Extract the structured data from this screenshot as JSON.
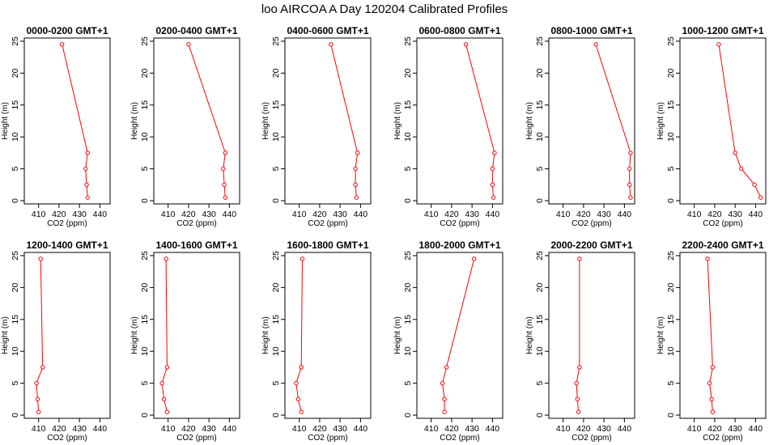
{
  "title": "loo AIRCOA A  Day 120204  Calibrated Profiles",
  "colors": {
    "line": "#ff0000",
    "points": "#ff0000",
    "frame": "#000000"
  },
  "chart_data": [
    {
      "type": "line",
      "title": "0000-0200 GMT+1",
      "xlabel": "CO2 (ppm)",
      "ylabel": "Height (m)",
      "xlim": [
        403,
        445
      ],
      "ylim": [
        -0.5,
        25.5
      ],
      "xticks": [
        410,
        420,
        430,
        440
      ],
      "yticks": [
        0,
        5,
        10,
        15,
        20,
        25
      ],
      "x": [
        434,
        433.5,
        433,
        434,
        421.5
      ],
      "y": [
        0.5,
        2.5,
        5,
        7.5,
        24.5
      ]
    },
    {
      "type": "line",
      "title": "0200-0400 GMT+1",
      "xlabel": "CO2 (ppm)",
      "ylabel": "Height (m)",
      "xlim": [
        403,
        445
      ],
      "ylim": [
        -0.5,
        25.5
      ],
      "xticks": [
        410,
        420,
        430,
        440
      ],
      "yticks": [
        0,
        5,
        10,
        15,
        20,
        25
      ],
      "x": [
        438,
        437.5,
        437,
        438,
        420
      ],
      "y": [
        0.5,
        2.5,
        5,
        7.5,
        24.5
      ]
    },
    {
      "type": "line",
      "title": "0400-0600 GMT+1",
      "xlabel": "CO2 (ppm)",
      "ylabel": "Height (m)",
      "xlim": [
        403,
        445
      ],
      "ylim": [
        -0.5,
        25.5
      ],
      "xticks": [
        410,
        420,
        430,
        440
      ],
      "yticks": [
        0,
        5,
        10,
        15,
        20,
        25
      ],
      "x": [
        438,
        437.5,
        437.5,
        438.5,
        425.5
      ],
      "y": [
        0.5,
        2.5,
        5,
        7.5,
        24.5
      ]
    },
    {
      "type": "line",
      "title": "0600-0800 GMT+1",
      "xlabel": "CO2 (ppm)",
      "ylabel": "Height (m)",
      "xlim": [
        403,
        445
      ],
      "ylim": [
        -0.5,
        25.5
      ],
      "xticks": [
        410,
        420,
        430,
        440
      ],
      "yticks": [
        0,
        5,
        10,
        15,
        20,
        25
      ],
      "x": [
        440.5,
        440,
        440,
        441,
        427
      ],
      "y": [
        0.5,
        2.5,
        5,
        7.5,
        24.5
      ]
    },
    {
      "type": "line",
      "title": "0800-1000 GMT+1",
      "xlabel": "CO2 (ppm)",
      "ylabel": "Height (m)",
      "xlim": [
        403,
        445
      ],
      "ylim": [
        -0.5,
        25.5
      ],
      "xticks": [
        410,
        420,
        430,
        440
      ],
      "yticks": [
        0,
        5,
        10,
        15,
        20,
        25
      ],
      "x": [
        443,
        442.5,
        442.5,
        443,
        426
      ],
      "y": [
        0.5,
        2.5,
        5,
        7.5,
        24.5
      ]
    },
    {
      "type": "line",
      "title": "1000-1200 GMT+1",
      "xlabel": "CO2 (ppm)",
      "ylabel": "Height (m)",
      "xlim": [
        403,
        445
      ],
      "ylim": [
        -0.5,
        25.5
      ],
      "xticks": [
        410,
        420,
        430,
        440
      ],
      "yticks": [
        0,
        5,
        10,
        15,
        20,
        25
      ],
      "x": [
        442.5,
        439.5,
        433,
        430,
        422
      ],
      "y": [
        0.5,
        2.5,
        5,
        7.5,
        24.5
      ]
    },
    {
      "type": "line",
      "title": "1200-1400 GMT+1",
      "xlabel": "CO2 (ppm)",
      "ylabel": "Height (m)",
      "xlim": [
        403,
        445
      ],
      "ylim": [
        -0.5,
        25.5
      ],
      "xticks": [
        410,
        420,
        430,
        440
      ],
      "yticks": [
        0,
        5,
        10,
        15,
        20,
        25
      ],
      "x": [
        410,
        409.5,
        409,
        412,
        411
      ],
      "y": [
        0.5,
        2.5,
        5,
        7.5,
        24.5
      ]
    },
    {
      "type": "line",
      "title": "1400-1600 GMT+1",
      "xlabel": "CO2 (ppm)",
      "ylabel": "Height (m)",
      "xlim": [
        403,
        445
      ],
      "ylim": [
        -0.5,
        25.5
      ],
      "xticks": [
        410,
        420,
        430,
        440
      ],
      "yticks": [
        0,
        5,
        10,
        15,
        20,
        25
      ],
      "x": [
        409.5,
        408,
        407,
        409.5,
        409
      ],
      "y": [
        0.5,
        2.5,
        5,
        7.5,
        24.5
      ]
    },
    {
      "type": "line",
      "title": "1600-1800 GMT+1",
      "xlabel": "CO2 (ppm)",
      "ylabel": "Height (m)",
      "xlim": [
        403,
        445
      ],
      "ylim": [
        -0.5,
        25.5
      ],
      "xticks": [
        410,
        420,
        430,
        440
      ],
      "yticks": [
        0,
        5,
        10,
        15,
        20,
        25
      ],
      "x": [
        411,
        409.5,
        408.5,
        411,
        411.5
      ],
      "y": [
        0.5,
        2.5,
        5,
        7.5,
        24.5
      ]
    },
    {
      "type": "line",
      "title": "1800-2000 GMT+1",
      "xlabel": "CO2 (ppm)",
      "ylabel": "Height (m)",
      "xlim": [
        403,
        445
      ],
      "ylim": [
        -0.5,
        25.5
      ],
      "xticks": [
        410,
        420,
        430,
        440
      ],
      "yticks": [
        0,
        5,
        10,
        15,
        20,
        25
      ],
      "x": [
        416.5,
        416.5,
        415.5,
        417.5,
        431
      ],
      "y": [
        0.5,
        2.5,
        5,
        7.5,
        24.5
      ]
    },
    {
      "type": "line",
      "title": "2000-2200 GMT+1",
      "xlabel": "CO2 (ppm)",
      "ylabel": "Height (m)",
      "xlim": [
        403,
        445
      ],
      "ylim": [
        -0.5,
        25.5
      ],
      "xticks": [
        410,
        420,
        430,
        440
      ],
      "yticks": [
        0,
        5,
        10,
        15,
        20,
        25
      ],
      "x": [
        417.5,
        417,
        416.5,
        418,
        418
      ],
      "y": [
        0.5,
        2.5,
        5,
        7.5,
        24.5
      ]
    },
    {
      "type": "line",
      "title": "2200-2400 GMT+1",
      "xlabel": "CO2 (ppm)",
      "ylabel": "Height (m)",
      "xlim": [
        403,
        445
      ],
      "ylim": [
        -0.5,
        25.5
      ],
      "xticks": [
        410,
        420,
        430,
        440
      ],
      "yticks": [
        0,
        5,
        10,
        15,
        20,
        25
      ],
      "x": [
        419,
        418.5,
        417.5,
        419,
        416.5
      ],
      "y": [
        0.5,
        2.5,
        5,
        7.5,
        24.5
      ]
    }
  ]
}
